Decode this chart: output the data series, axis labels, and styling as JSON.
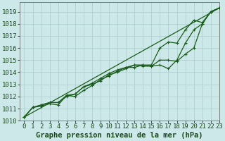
{
  "title": "Graphe pression niveau de la mer (hPa)",
  "bg_color": "#cce8e8",
  "grid_color": "#aacccc",
  "line_color": "#1a5c1a",
  "xlim": [
    -0.5,
    23
  ],
  "ylim": [
    1010.0,
    1019.8
  ],
  "yticks": [
    1010,
    1011,
    1012,
    1013,
    1014,
    1015,
    1016,
    1017,
    1018,
    1019
  ],
  "xticks": [
    0,
    1,
    2,
    3,
    4,
    5,
    6,
    7,
    8,
    9,
    10,
    11,
    12,
    13,
    14,
    15,
    16,
    17,
    18,
    19,
    20,
    21,
    22,
    23
  ],
  "series": [
    [
      1010.3,
      1011.1,
      1011.2,
      1011.4,
      1011.3,
      1012.1,
      1012.0,
      1012.5,
      1012.9,
      1013.4,
      1013.7,
      1014.1,
      1014.4,
      1014.4,
      1014.6,
      1014.6,
      1016.0,
      1016.5,
      1016.4,
      1017.5,
      1018.3,
      1018.1,
      1019.0,
      1019.3
    ],
    [
      1010.3,
      1011.1,
      1011.3,
      1011.5,
      1011.5,
      1012.1,
      1012.2,
      1012.8,
      1013.1,
      1013.5,
      1013.9,
      1014.2,
      1014.4,
      1014.6,
      1014.5,
      1014.5,
      1015.0,
      1015.0,
      1014.9,
      1015.5,
      1016.0,
      1018.0,
      1019.0,
      1019.3
    ],
    [
      1010.3,
      1011.1,
      1011.3,
      1011.5,
      1011.5,
      1012.0,
      1012.2,
      1012.8,
      1013.0,
      1013.3,
      1013.8,
      1014.0,
      1014.3,
      1014.6,
      1014.6,
      1014.5,
      1014.6,
      1014.3,
      1015.0,
      1016.4,
      1017.5,
      1018.0,
      1019.0,
      1019.3
    ]
  ],
  "tick_fontsize": 6.5,
  "title_fontsize": 7.5
}
